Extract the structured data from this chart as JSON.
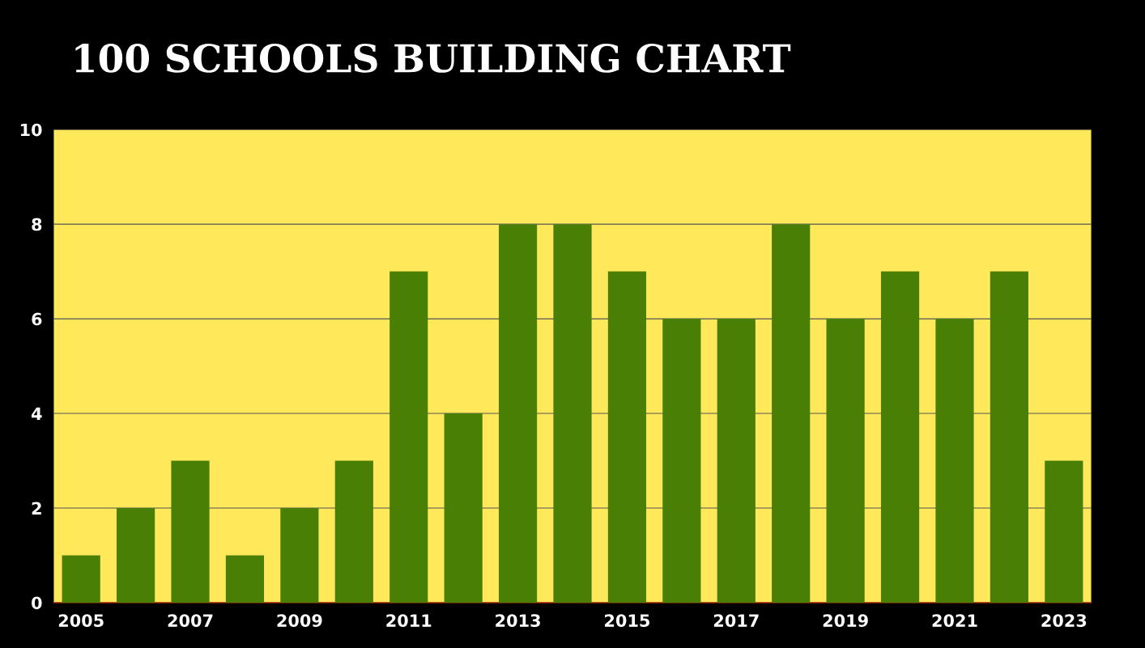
{
  "chart_data": {
    "type": "bar",
    "title": "100 SCHOOLS BUILDING CHART",
    "categories": [
      "2005",
      null,
      "2007",
      null,
      "2009",
      null,
      "2011",
      null,
      "2013",
      null,
      "2015",
      null,
      "2017",
      null,
      "2019",
      null,
      "2021",
      null,
      "2023"
    ],
    "values": [
      1,
      2,
      3,
      1,
      2,
      3,
      7,
      4,
      8,
      8,
      7,
      6,
      6,
      8,
      6,
      7,
      6,
      7,
      3
    ],
    "color": "#4a7f05",
    "ylim": [
      0,
      10
    ],
    "yticks": [
      0,
      2,
      4,
      6,
      8,
      10
    ],
    "grid": "y",
    "legend": false
  }
}
